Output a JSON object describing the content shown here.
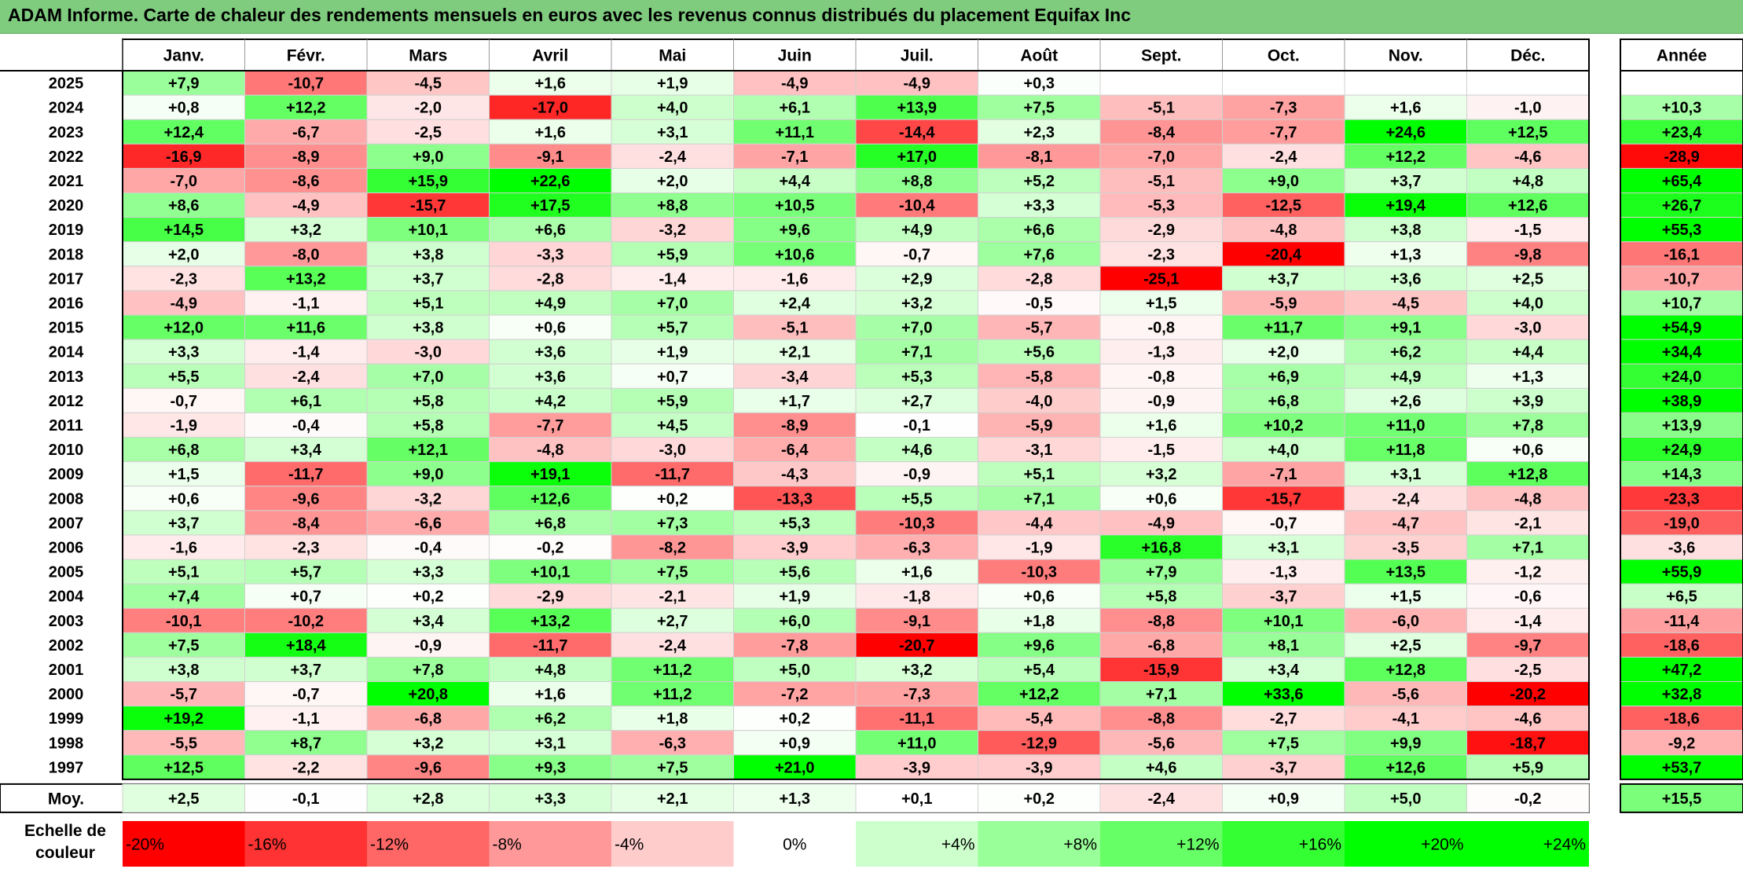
{
  "title": "ADAM Informe. Carte de chaleur des rendements mensuels en euros avec les revenus connus distribués du placement Equifax Inc",
  "colors": {
    "positive": "#00ff00",
    "negative": "#ff0000",
    "neutral": "#ffffff",
    "title_bg": "#7fcc7f"
  },
  "chart_data": {
    "type": "heatmap",
    "months": [
      "Janv.",
      "Févr.",
      "Mars",
      "Avril",
      "Mai",
      "Juin",
      "Juil.",
      "Août",
      "Sept.",
      "Oct.",
      "Nov.",
      "Déc."
    ],
    "annual_header": "Année",
    "average_label": "Moy.",
    "rows": [
      {
        "year": "2025",
        "values": [
          "+7,9",
          "-10,7",
          "-4,5",
          "+1,6",
          "+1,9",
          "-4,9",
          "-4,9",
          "+0,3",
          "",
          "",
          "",
          ""
        ],
        "annual": ""
      },
      {
        "year": "2024",
        "values": [
          "+0,8",
          "+12,2",
          "-2,0",
          "-17,0",
          "+4,0",
          "+6,1",
          "+13,9",
          "+7,5",
          "-5,1",
          "-7,3",
          "+1,6",
          "-1,0"
        ],
        "annual": "+10,3"
      },
      {
        "year": "2023",
        "values": [
          "+12,4",
          "-6,7",
          "-2,5",
          "+1,6",
          "+3,1",
          "+11,1",
          "-14,4",
          "+2,3",
          "-8,4",
          "-7,7",
          "+24,6",
          "+12,5"
        ],
        "annual": "+23,4"
      },
      {
        "year": "2022",
        "values": [
          "-16,9",
          "-8,9",
          "+9,0",
          "-9,1",
          "-2,4",
          "-7,1",
          "+17,0",
          "-8,1",
          "-7,0",
          "-2,4",
          "+12,2",
          "-4,6"
        ],
        "annual": "-28,9"
      },
      {
        "year": "2021",
        "values": [
          "-7,0",
          "-8,6",
          "+15,9",
          "+22,6",
          "+2,0",
          "+4,4",
          "+8,8",
          "+5,2",
          "-5,1",
          "+9,0",
          "+3,7",
          "+4,8"
        ],
        "annual": "+65,4"
      },
      {
        "year": "2020",
        "values": [
          "+8,6",
          "-4,9",
          "-15,7",
          "+17,5",
          "+8,8",
          "+10,5",
          "-10,4",
          "+3,3",
          "-5,3",
          "-12,5",
          "+19,4",
          "+12,6"
        ],
        "annual": "+26,7"
      },
      {
        "year": "2019",
        "values": [
          "+14,5",
          "+3,2",
          "+10,1",
          "+6,6",
          "-3,2",
          "+9,6",
          "+4,9",
          "+6,6",
          "-2,9",
          "-4,8",
          "+3,8",
          "-1,5"
        ],
        "annual": "+55,3"
      },
      {
        "year": "2018",
        "values": [
          "+2,0",
          "-8,0",
          "+3,8",
          "-3,3",
          "+5,9",
          "+10,6",
          "-0,7",
          "+7,6",
          "-2,3",
          "-20,4",
          "+1,3",
          "-9,8"
        ],
        "annual": "-16,1"
      },
      {
        "year": "2017",
        "values": [
          "-2,3",
          "+13,2",
          "+3,7",
          "-2,8",
          "-1,4",
          "-1,6",
          "+2,9",
          "-2,8",
          "-25,1",
          "+3,7",
          "+3,6",
          "+2,5"
        ],
        "annual": "-10,7"
      },
      {
        "year": "2016",
        "values": [
          "-4,9",
          "-1,1",
          "+5,1",
          "+4,9",
          "+7,0",
          "+2,4",
          "+3,2",
          "-0,5",
          "+1,5",
          "-5,9",
          "-4,5",
          "+4,0"
        ],
        "annual": "+10,7"
      },
      {
        "year": "2015",
        "values": [
          "+12,0",
          "+11,6",
          "+3,8",
          "+0,6",
          "+5,7",
          "-5,1",
          "+7,0",
          "-5,7",
          "-0,8",
          "+11,7",
          "+9,1",
          "-3,0"
        ],
        "annual": "+54,9"
      },
      {
        "year": "2014",
        "values": [
          "+3,3",
          "-1,4",
          "-3,0",
          "+3,6",
          "+1,9",
          "+2,1",
          "+7,1",
          "+5,6",
          "-1,3",
          "+2,0",
          "+6,2",
          "+4,4"
        ],
        "annual": "+34,4"
      },
      {
        "year": "2013",
        "values": [
          "+5,5",
          "-2,4",
          "+7,0",
          "+3,6",
          "+0,7",
          "-3,4",
          "+5,3",
          "-5,8",
          "-0,8",
          "+6,9",
          "+4,9",
          "+1,3"
        ],
        "annual": "+24,0"
      },
      {
        "year": "2012",
        "values": [
          "-0,7",
          "+6,1",
          "+5,8",
          "+4,2",
          "+5,9",
          "+1,7",
          "+2,7",
          "-4,0",
          "-0,9",
          "+6,8",
          "+2,6",
          "+3,9"
        ],
        "annual": "+38,9"
      },
      {
        "year": "2011",
        "values": [
          "-1,9",
          "-0,4",
          "+5,8",
          "-7,7",
          "+4,5",
          "-8,9",
          "-0,1",
          "-5,9",
          "+1,6",
          "+10,2",
          "+11,0",
          "+7,8"
        ],
        "annual": "+13,9"
      },
      {
        "year": "2010",
        "values": [
          "+6,8",
          "+3,4",
          "+12,1",
          "-4,8",
          "-3,0",
          "-6,4",
          "+4,6",
          "-3,1",
          "-1,5",
          "+4,0",
          "+11,8",
          "+0,6"
        ],
        "annual": "+24,9"
      },
      {
        "year": "2009",
        "values": [
          "+1,5",
          "-11,7",
          "+9,0",
          "+19,1",
          "-11,7",
          "-4,3",
          "-0,9",
          "+5,1",
          "+3,2",
          "-7,1",
          "+3,1",
          "+12,8"
        ],
        "annual": "+14,3"
      },
      {
        "year": "2008",
        "values": [
          "+0,6",
          "-9,6",
          "-3,2",
          "+12,6",
          "+0,2",
          "-13,3",
          "+5,5",
          "+7,1",
          "+0,6",
          "-15,7",
          "-2,4",
          "-4,8"
        ],
        "annual": "-23,3"
      },
      {
        "year": "2007",
        "values": [
          "+3,7",
          "-8,4",
          "-6,6",
          "+6,8",
          "+7,3",
          "+5,3",
          "-10,3",
          "-4,4",
          "-4,9",
          "-0,7",
          "-4,7",
          "-2,1"
        ],
        "annual": "-19,0"
      },
      {
        "year": "2006",
        "values": [
          "-1,6",
          "-2,3",
          "-0,4",
          "-0,2",
          "-8,2",
          "-3,9",
          "-6,3",
          "-1,9",
          "+16,8",
          "+3,1",
          "-3,5",
          "+7,1"
        ],
        "annual": "-3,6"
      },
      {
        "year": "2005",
        "values": [
          "+5,1",
          "+5,7",
          "+3,3",
          "+10,1",
          "+7,5",
          "+5,6",
          "+1,6",
          "-10,3",
          "+7,9",
          "-1,3",
          "+13,5",
          "-1,2"
        ],
        "annual": "+55,9"
      },
      {
        "year": "2004",
        "values": [
          "+7,4",
          "+0,7",
          "+0,2",
          "-2,9",
          "-2,1",
          "+1,9",
          "-1,8",
          "+0,6",
          "+5,8",
          "-3,7",
          "+1,5",
          "-0,6"
        ],
        "annual": "+6,5"
      },
      {
        "year": "2003",
        "values": [
          "-10,1",
          "-10,2",
          "+3,4",
          "+13,2",
          "+2,7",
          "+6,0",
          "-9,1",
          "+1,8",
          "-8,8",
          "+10,1",
          "-6,0",
          "-1,4"
        ],
        "annual": "-11,4"
      },
      {
        "year": "2002",
        "values": [
          "+7,5",
          "+18,4",
          "-0,9",
          "-11,7",
          "-2,4",
          "-7,8",
          "-20,7",
          "+9,6",
          "-6,8",
          "+8,1",
          "+2,5",
          "-9,7"
        ],
        "annual": "-18,6"
      },
      {
        "year": "2001",
        "values": [
          "+3,8",
          "+3,7",
          "+7,8",
          "+4,8",
          "+11,2",
          "+5,0",
          "+3,2",
          "+5,4",
          "-15,9",
          "+3,4",
          "+12,8",
          "-2,5"
        ],
        "annual": "+47,2"
      },
      {
        "year": "2000",
        "values": [
          "-5,7",
          "-0,7",
          "+20,8",
          "+1,6",
          "+11,2",
          "-7,2",
          "-7,3",
          "+12,2",
          "+7,1",
          "+33,6",
          "-5,6",
          "-20,2"
        ],
        "annual": "+32,8"
      },
      {
        "year": "1999",
        "values": [
          "+19,2",
          "-1,1",
          "-6,8",
          "+6,2",
          "+1,8",
          "+0,2",
          "-11,1",
          "-5,4",
          "-8,8",
          "-2,7",
          "-4,1",
          "-4,6"
        ],
        "annual": "-18,6"
      },
      {
        "year": "1998",
        "values": [
          "-5,5",
          "+8,7",
          "+3,2",
          "+3,1",
          "-6,3",
          "+0,9",
          "+11,0",
          "-12,9",
          "-5,6",
          "+7,5",
          "+9,9",
          "-18,7"
        ],
        "annual": "-9,2"
      },
      {
        "year": "1997",
        "values": [
          "+12,5",
          "-2,2",
          "-9,6",
          "+9,3",
          "+7,5",
          "+21,0",
          "-3,9",
          "-3,9",
          "+4,6",
          "-3,7",
          "+12,6",
          "+5,9"
        ],
        "annual": "+53,7"
      }
    ],
    "average": {
      "values": [
        "+2,5",
        "-0,1",
        "+2,8",
        "+3,3",
        "+2,1",
        "+1,3",
        "+0,1",
        "+0,2",
        "-2,4",
        "+0,9",
        "+5,0",
        "-0,2"
      ],
      "annual": "+15,5"
    },
    "legend": {
      "label_line1": "Echelle de",
      "label_line2": "couleur",
      "steps": [
        "-20%",
        "-16%",
        "-12%",
        "-8%",
        "-4%",
        "0%",
        "+4%",
        "+8%",
        "+12%",
        "+16%",
        "+20%",
        "+24%"
      ],
      "step_values": [
        -20,
        -16,
        -12,
        -8,
        -4,
        0,
        4,
        8,
        12,
        16,
        20,
        24
      ]
    }
  }
}
